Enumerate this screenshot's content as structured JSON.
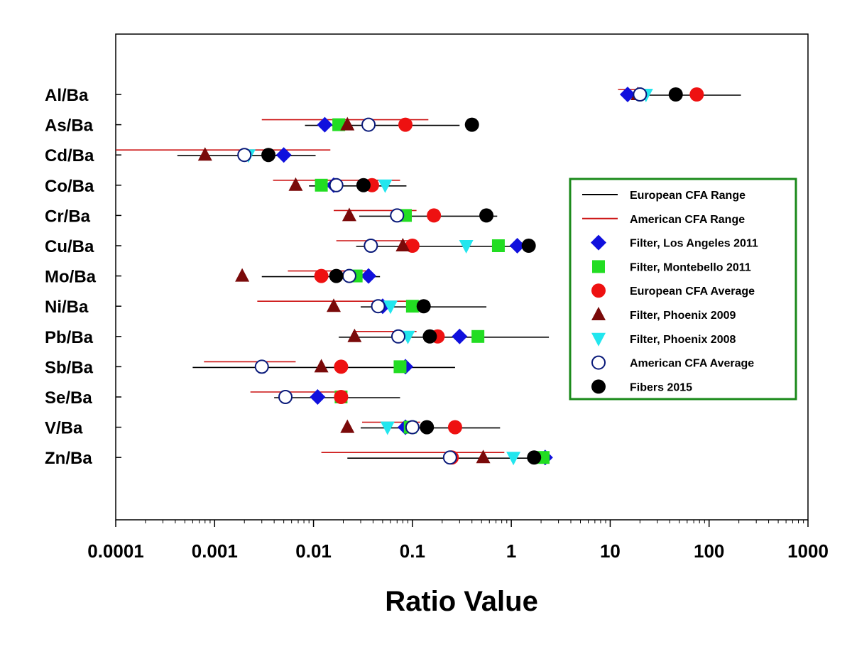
{
  "chart_data": {
    "type": "scatter",
    "x_scale": "log",
    "xlim": [
      0.0001,
      1000
    ],
    "xlabel": "Ratio Value",
    "x_ticks": [
      {
        "value": 0.0001,
        "label": "0.0001"
      },
      {
        "value": 0.001,
        "label": "0.001"
      },
      {
        "value": 0.01,
        "label": "0.01"
      },
      {
        "value": 0.1,
        "label": "0.1"
      },
      {
        "value": 1,
        "label": "1"
      },
      {
        "value": 10,
        "label": "10"
      },
      {
        "value": 100,
        "label": "100"
      },
      {
        "value": 1000,
        "label": "1000"
      }
    ],
    "categories": [
      "Al/Ba",
      "As/Ba",
      "Cd/Ba",
      "Co/Ba",
      "Cr/Ba",
      "Cu/Ba",
      "Mo/Ba",
      "Ni/Ba",
      "Pb/Ba",
      "Sb/Ba",
      "Se/Ba",
      "V/Ba",
      "Zn/Ba"
    ],
    "grid": false,
    "legend_position": "right",
    "legend": [
      {
        "key": "eu_range",
        "label": "European CFA Range",
        "symbol": "line",
        "color": "#000000"
      },
      {
        "key": "am_range",
        "label": "American CFA Range",
        "symbol": "line",
        "color": "#cc1111"
      },
      {
        "key": "la2011",
        "label": "Filter, Los Angeles 2011",
        "symbol": "diamond",
        "color": "#1010dd"
      },
      {
        "key": "mb2011",
        "label": "Filter, Montebello 2011",
        "symbol": "square",
        "color": "#22dd22"
      },
      {
        "key": "eu_avg",
        "label": "European CFA Average",
        "symbol": "circle",
        "color": "#ee1111"
      },
      {
        "key": "ph2009",
        "label": "Filter, Phoenix 2009",
        "symbol": "triangle-up",
        "color": "#7a0a0a"
      },
      {
        "key": "ph2008",
        "label": "Filter, Phoenix 2008",
        "symbol": "triangle-down",
        "color": "#22e6ee"
      },
      {
        "key": "am_avg",
        "label": "American CFA Average",
        "symbol": "circle-open",
        "color": "#0a1a7a"
      },
      {
        "key": "fibers",
        "label": "Fibers 2015",
        "symbol": "circle",
        "color": "#000000",
        "label_color": "#dd1111"
      }
    ],
    "ranges": {
      "eu_range": [
        [
          13,
          210
        ],
        [
          0.0082,
          0.3
        ],
        [
          0.00042,
          0.0105
        ],
        [
          0.009,
          0.087
        ],
        [
          0.029,
          0.72
        ],
        [
          0.027,
          1.3
        ],
        [
          0.003,
          0.047
        ],
        [
          0.03,
          0.56
        ],
        [
          0.018,
          2.4
        ],
        [
          0.0006,
          0.27
        ],
        [
          0.004,
          0.075
        ],
        [
          0.03,
          0.77
        ],
        [
          0.022,
          2.2
        ]
      ],
      "am_range": [
        [
          12,
          26
        ],
        [
          0.003,
          0.145
        ],
        [
          0.0001,
          0.0148
        ],
        [
          0.0039,
          0.075
        ],
        [
          0.016,
          0.11
        ],
        [
          0.017,
          0.09
        ],
        [
          0.0055,
          0.036
        ],
        [
          0.0027,
          0.12
        ],
        [
          0.025,
          0.11
        ],
        [
          0.00078,
          0.0066
        ],
        [
          0.0023,
          0.022
        ],
        [
          0.031,
          0.12
        ],
        [
          0.012,
          0.85
        ]
      ]
    },
    "series": [
      {
        "key": "la2011",
        "name": "Filter, Los Angeles 2011",
        "values": [
          15,
          0.013,
          0.005,
          0.016,
          null,
          1.15,
          0.036,
          0.05,
          0.3,
          0.085,
          0.011,
          0.085,
          2.2
        ]
      },
      {
        "key": "mb2011",
        "name": "Filter, Montebello 2011",
        "values": [
          null,
          0.018,
          null,
          0.012,
          0.085,
          0.74,
          0.027,
          0.1,
          0.46,
          0.075,
          0.019,
          0.095,
          2.1
        ]
      },
      {
        "key": "eu_avg",
        "name": "European CFA Average",
        "values": [
          75,
          0.085,
          null,
          0.039,
          0.165,
          0.1,
          0.012,
          null,
          0.18,
          0.019,
          0.019,
          0.27,
          0.25
        ]
      },
      {
        "key": "ph2009",
        "name": "Filter, Phoenix 2009",
        "values": [
          19,
          0.022,
          0.0008,
          0.0066,
          0.023,
          0.08,
          0.0019,
          0.016,
          0.026,
          0.012,
          null,
          0.022,
          0.52
        ]
      },
      {
        "key": "ph2008",
        "name": "Filter, Phoenix 2008",
        "values": [
          23,
          null,
          0.0022,
          0.053,
          null,
          0.35,
          null,
          0.06,
          0.09,
          null,
          null,
          0.056,
          1.05
        ]
      },
      {
        "key": "am_avg",
        "name": "American CFA Average",
        "values": [
          20,
          0.036,
          0.002,
          0.017,
          0.07,
          0.038,
          0.023,
          0.045,
          0.072,
          0.003,
          0.0052,
          0.1,
          0.24
        ]
      },
      {
        "key": "fibers",
        "name": "Fibers 2015",
        "values": [
          46,
          0.4,
          0.0035,
          0.032,
          0.56,
          1.5,
          0.017,
          0.13,
          0.15,
          null,
          null,
          0.14,
          1.7
        ]
      }
    ]
  }
}
